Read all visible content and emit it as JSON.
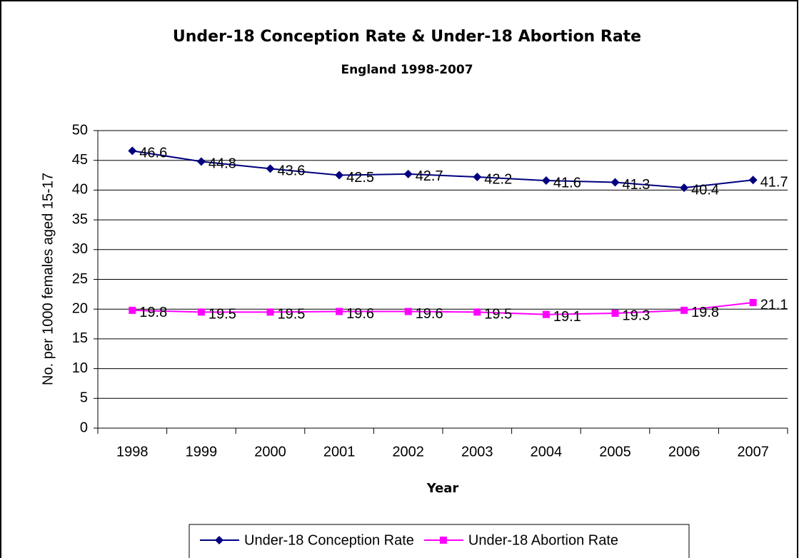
{
  "chart_data": {
    "type": "line",
    "title": "Under-18 Conception Rate & Under-18 Abortion Rate",
    "subtitle": "England 1998-2007",
    "x_label": "Year",
    "y_label": "No. per 1000 females aged 15-17",
    "categories": [
      "1998",
      "1999",
      "2000",
      "2001",
      "2002",
      "2003",
      "2004",
      "2005",
      "2006",
      "2007"
    ],
    "series": [
      {
        "name": "Under-18 Conception Rate",
        "color": "#000080",
        "marker": "diamond",
        "values": [
          46.6,
          44.8,
          43.6,
          42.5,
          42.7,
          42.2,
          41.6,
          41.3,
          40.4,
          41.7
        ]
      },
      {
        "name": "Under-18 Abortion Rate",
        "color": "#ff00ff",
        "marker": "square",
        "values": [
          19.8,
          19.5,
          19.5,
          19.6,
          19.6,
          19.5,
          19.1,
          19.3,
          19.8,
          21.1
        ]
      }
    ],
    "ylim": [
      0,
      50
    ],
    "yticks": [
      0,
      5,
      10,
      15,
      20,
      25,
      30,
      35,
      40,
      45,
      50
    ],
    "grid": true,
    "legend": "bottom"
  }
}
